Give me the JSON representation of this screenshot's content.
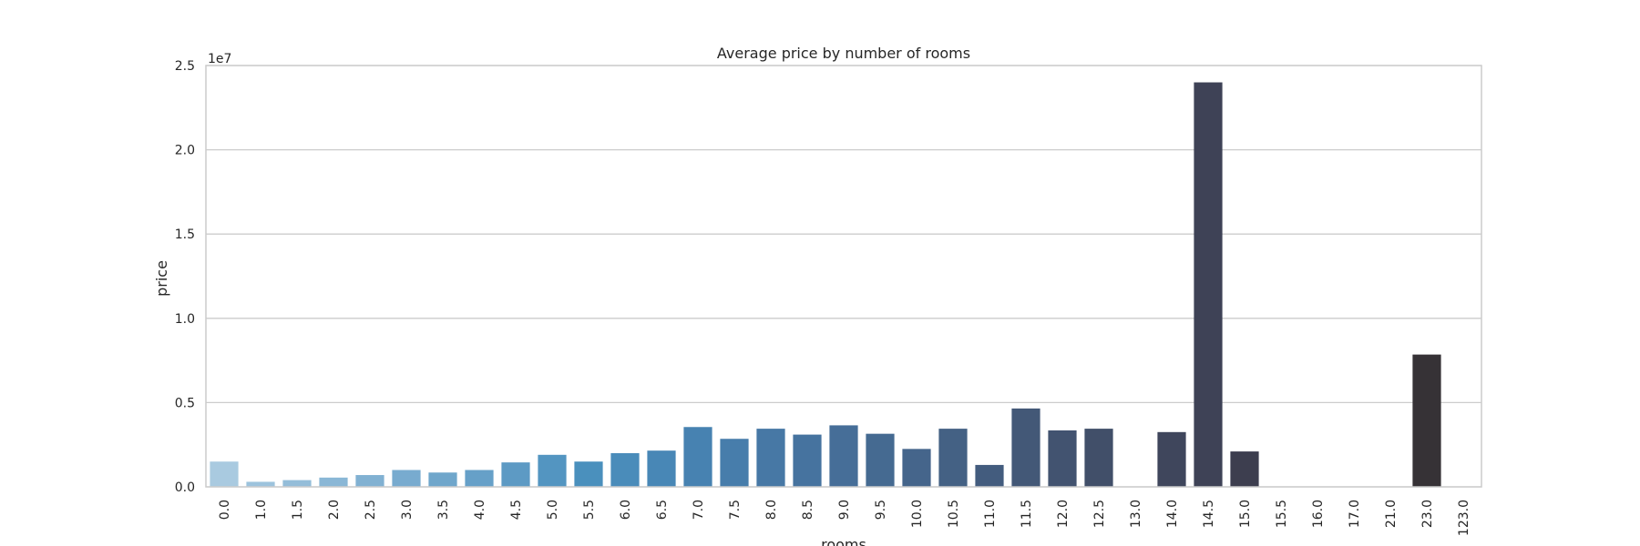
{
  "chart_data": {
    "type": "bar",
    "title": "Average price by number of rooms",
    "xlabel": "rooms",
    "ylabel": "price",
    "offset_label": "1e7",
    "ylim": [
      0,
      2.5
    ],
    "yticks": [
      "0.0",
      "0.5",
      "1.0",
      "1.5",
      "2.0",
      "2.5"
    ],
    "grid": true,
    "categories": [
      "0.0",
      "1.0",
      "1.5",
      "2.0",
      "2.5",
      "3.0",
      "3.5",
      "4.0",
      "4.5",
      "5.0",
      "5.5",
      "6.0",
      "6.5",
      "7.0",
      "7.5",
      "8.0",
      "8.5",
      "9.0",
      "9.5",
      "10.0",
      "10.5",
      "11.0",
      "11.5",
      "12.0",
      "12.5",
      "13.0",
      "14.0",
      "14.5",
      "15.0",
      "15.5",
      "16.0",
      "17.0",
      "21.0",
      "23.0",
      "123.0"
    ],
    "values": [
      0.15,
      0.03,
      0.04,
      0.055,
      0.07,
      0.1,
      0.085,
      0.1,
      0.145,
      0.19,
      0.15,
      0.2,
      0.215,
      0.355,
      0.285,
      0.345,
      0.31,
      0.365,
      0.315,
      0.225,
      0.345,
      0.13,
      0.465,
      0.335,
      0.345,
      0.0,
      0.325,
      2.4,
      0.21,
      0.0,
      0.0,
      0.0,
      0.0,
      0.785,
      0.0
    ],
    "palette": [
      "#a9cae0",
      "#9dc3dd",
      "#94bdd9",
      "#8ab7d6",
      "#81b1d2",
      "#78abcf",
      "#6fa6cb",
      "#66a0c8",
      "#5d9ac4",
      "#5395c1",
      "#4a90bd",
      "#4a8cba",
      "#4887b6",
      "#4782b1",
      "#477dab",
      "#4778a5",
      "#46739f",
      "#466e98",
      "#456a91",
      "#45658b",
      "#446184",
      "#435c7e",
      "#435877",
      "#425370",
      "#414f69",
      "#404a62",
      "#3f465c",
      "#3e4256",
      "#3d3e4f",
      "#3b3a49",
      "#393743",
      "#38353e",
      "#373339",
      "#363236",
      "#353234"
    ],
    "colors": {
      "axis": "#cccccc",
      "grid": "#cccccc",
      "text": "#262626",
      "background": "#ffffff"
    }
  }
}
